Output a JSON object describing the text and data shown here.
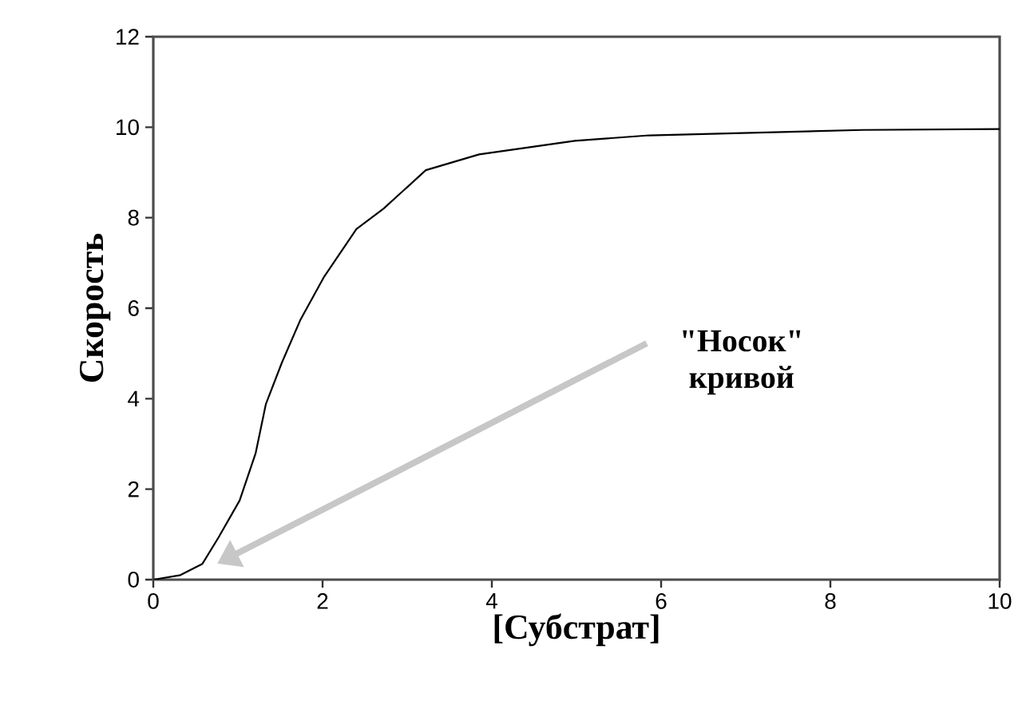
{
  "chart_data": {
    "type": "line",
    "xlabel": "[Субстрат]",
    "ylabel": "Скорость",
    "x": [
      0,
      0.32,
      0.58,
      0.77,
      1.02,
      1.21,
      1.33,
      1.52,
      1.74,
      2.02,
      2.4,
      2.72,
      3.22,
      3.85,
      4.98,
      5.86,
      8.38,
      10
    ],
    "series": [
      {
        "color": "#000000",
        "values": [
          0,
          0.1,
          0.35,
          0.93,
          1.75,
          2.8,
          3.88,
          4.8,
          5.75,
          6.7,
          7.75,
          8.2,
          9.05,
          9.4,
          9.7,
          9.82,
          9.94,
          9.96
        ]
      }
    ],
    "xlim": [
      0,
      10
    ],
    "ylim": [
      0,
      12
    ],
    "xticks": [
      0,
      2,
      4,
      6,
      8,
      10
    ],
    "yticks": [
      0,
      2,
      4,
      6,
      8,
      10,
      12
    ],
    "grid": false,
    "marker": "none",
    "line_style": "solid",
    "annotations": [
      "\"Носок\" кривой"
    ]
  }
}
